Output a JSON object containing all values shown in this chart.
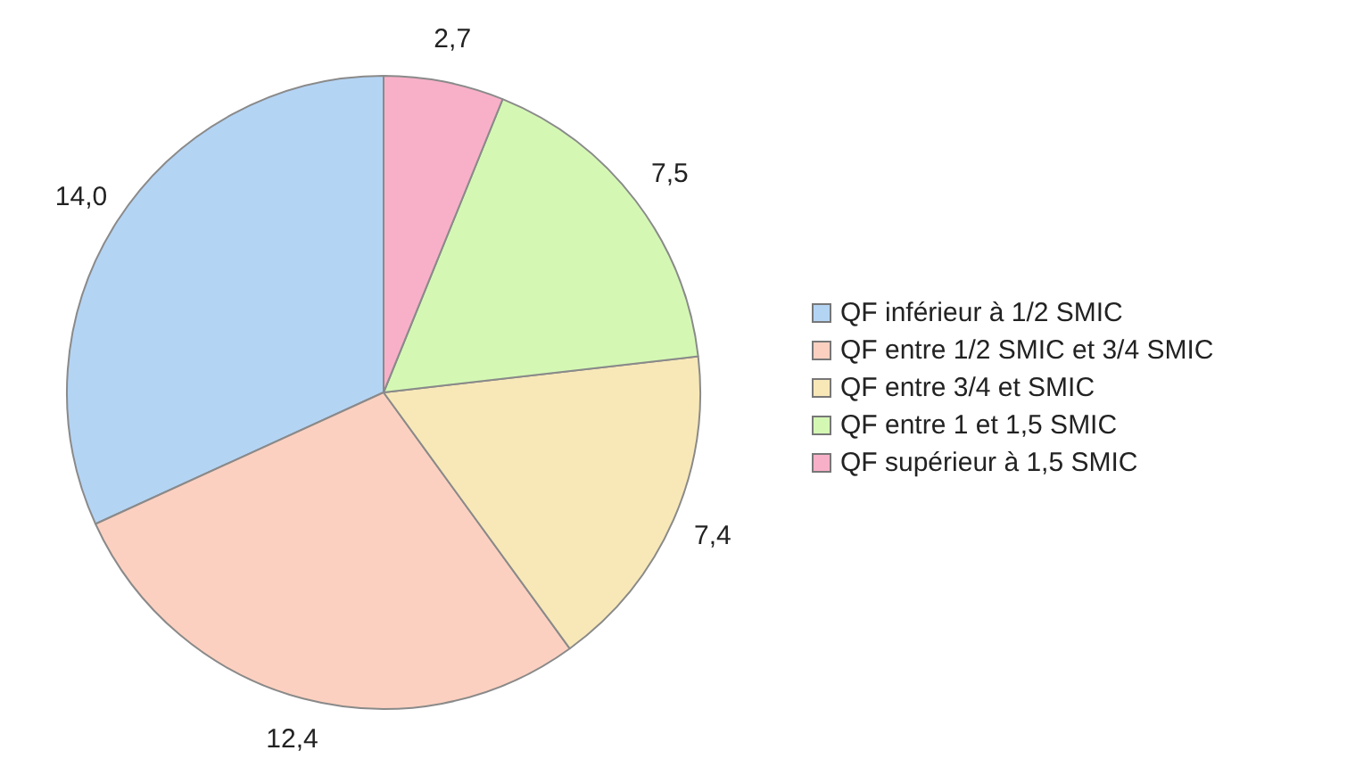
{
  "chart_data": {
    "type": "pie",
    "categories": [
      "QF inférieur à 1/2 SMIC",
      "QF entre 1/2 SMIC et 3/4 SMIC",
      "QF entre 3/4 et SMIC",
      "QF entre 1 et 1,5 SMIC",
      "QF supérieur à 1,5 SMIC"
    ],
    "values": [
      14.0,
      12.4,
      7.4,
      7.5,
      2.7
    ],
    "value_labels": [
      "14,0",
      "12,4",
      "7,4",
      "7,5",
      "2,7"
    ],
    "colors": [
      "#b4d4f4",
      "#fcd0c0",
      "#f8e8b8",
      "#d4f8b4",
      "#f8b0c8"
    ],
    "legend": "right"
  }
}
